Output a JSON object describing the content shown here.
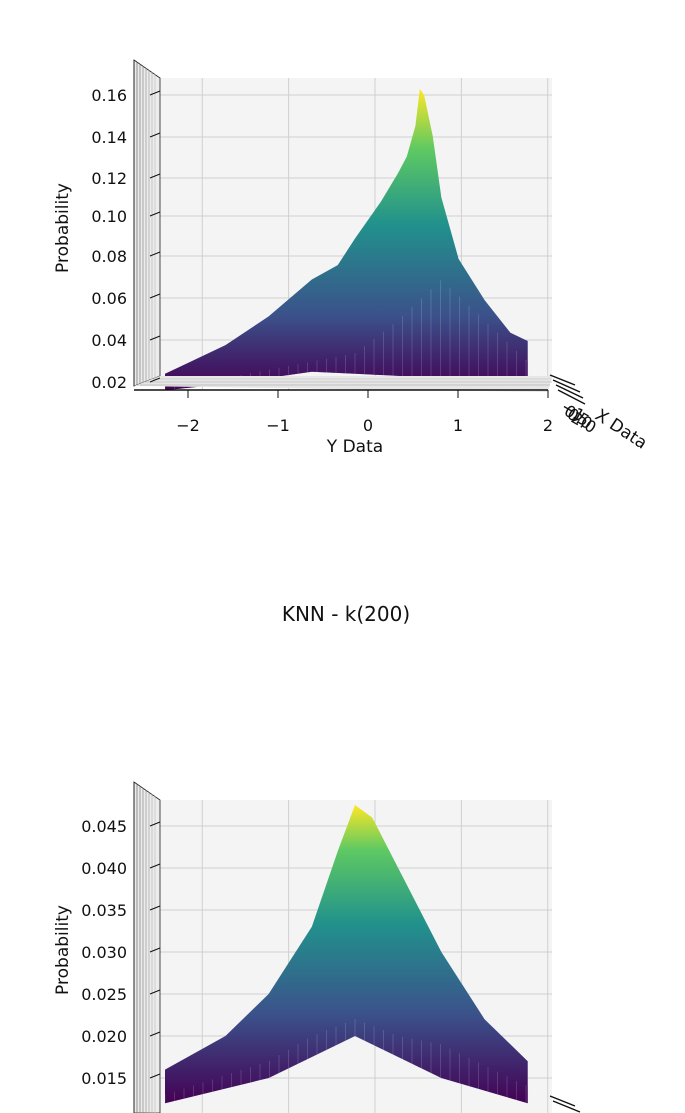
{
  "figure": {
    "title_between": "KNN - k(200)"
  },
  "chart_data": [
    {
      "type": "surface",
      "title": "",
      "ylabel": "Probability",
      "xlabel": "Y Data",
      "depth_label": "X Data",
      "x_ticks": [
        "−2",
        "−1",
        "0",
        "1",
        "2"
      ],
      "z_ticks": [
        "0.02",
        "0.04",
        "0.06",
        "0.08",
        "0.10",
        "0.12",
        "0.14",
        "0.16"
      ],
      "zlim": [
        0.015,
        0.165
      ],
      "x_range": [
        -2.2,
        2.2
      ],
      "colormap": [
        "#440154",
        "#3b528b",
        "#21918c",
        "#5ec962",
        "#fde725"
      ],
      "front_profile": {
        "x": [
          -2.2,
          -2.0,
          -1.5,
          -1.0,
          -0.5,
          -0.2,
          0.0,
          0.3,
          0.5,
          0.6,
          0.7,
          0.75,
          0.8,
          0.9,
          1.0,
          1.2,
          1.5,
          1.8,
          2.0
        ],
        "z": [
          0.024,
          0.028,
          0.038,
          0.052,
          0.07,
          0.077,
          0.09,
          0.108,
          0.122,
          0.13,
          0.145,
          0.163,
          0.16,
          0.14,
          0.11,
          0.08,
          0.06,
          0.044,
          0.04
        ]
      },
      "back_profile": {
        "x": [
          -2.2,
          -1.5,
          -1.0,
          -0.5,
          0.0,
          0.5,
          1.0,
          1.5,
          2.0
        ],
        "z": [
          0.018,
          0.022,
          0.026,
          0.03,
          0.034,
          0.05,
          0.07,
          0.05,
          0.03
        ]
      },
      "bottom_profile": {
        "x": [
          -2.2,
          -1.5,
          -1.0,
          -0.5,
          0.0,
          0.5,
          1.0,
          1.5,
          2.0
        ],
        "z": [
          0.016,
          0.019,
          0.022,
          0.025,
          0.024,
          0.023,
          0.021,
          0.019,
          0.017
        ]
      }
    },
    {
      "type": "surface",
      "title": "KNN - k(200)",
      "ylabel": "Probability",
      "xlabel": "",
      "z_ticks": [
        "0.015",
        "0.020",
        "0.025",
        "0.030",
        "0.035",
        "0.040",
        "0.045"
      ],
      "zlim": [
        0.011,
        0.048
      ],
      "x_range": [
        -2.2,
        2.2
      ],
      "colormap": [
        "#440154",
        "#3b528b",
        "#21918c",
        "#5ec962",
        "#fde725"
      ],
      "front_profile": {
        "x": [
          -2.2,
          -1.5,
          -1.0,
          -0.5,
          -0.2,
          0.0,
          0.2,
          0.5,
          1.0,
          1.5,
          2.0
        ],
        "z": [
          0.016,
          0.02,
          0.025,
          0.033,
          0.042,
          0.0475,
          0.046,
          0.04,
          0.03,
          0.022,
          0.017
        ]
      },
      "back_profile": {
        "x": [
          -2.2,
          -1.0,
          -0.5,
          0.0,
          0.5,
          1.0,
          2.0
        ],
        "z": [
          0.013,
          0.017,
          0.02,
          0.022,
          0.02,
          0.019,
          0.014
        ]
      },
      "bottom_profile": {
        "x": [
          -2.2,
          -1.0,
          0.0,
          1.0,
          2.0
        ],
        "z": [
          0.012,
          0.015,
          0.02,
          0.015,
          0.012
        ]
      }
    }
  ]
}
